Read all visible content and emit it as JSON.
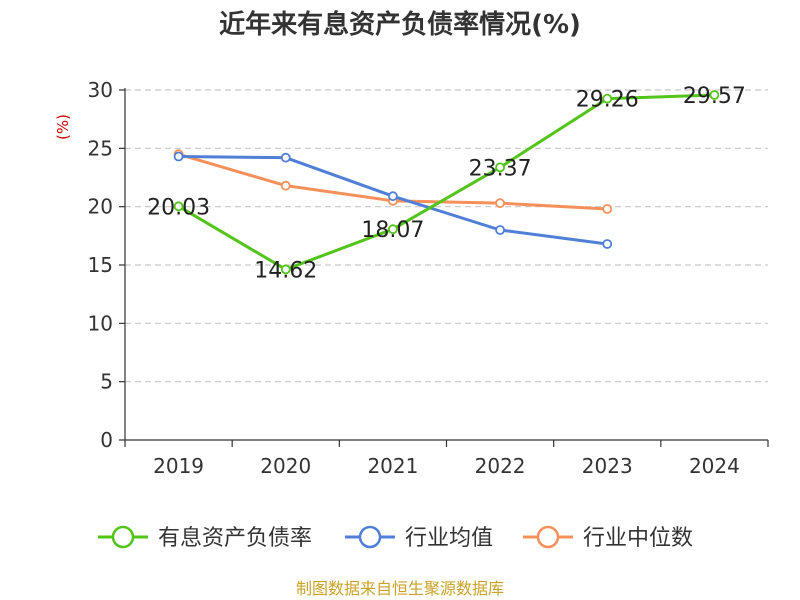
{
  "chart_data": {
    "type": "line",
    "title": "近年来有息资产负债率情况(%)",
    "ylabel": "(%)",
    "categories": [
      "2019",
      "2020",
      "2021",
      "2022",
      "2023",
      "2024"
    ],
    "ylim": [
      0,
      30
    ],
    "yticks": [
      "0",
      "5",
      "10",
      "15",
      "20",
      "25",
      "30"
    ],
    "grid": true,
    "legend_position": "bottom",
    "series": [
      {
        "name": "有息资产负债率",
        "color": "#52c41a",
        "values": [
          20.03,
          14.62,
          18.07,
          23.37,
          29.26,
          29.57
        ],
        "labels": [
          "20.03",
          "14.62",
          "18.07",
          "23.37",
          "29.26",
          "29.57"
        ]
      },
      {
        "name": "行业均值",
        "color": "#4f7fd6",
        "values": [
          24.3,
          24.2,
          20.9,
          18.0,
          16.8,
          null
        ]
      },
      {
        "name": "行业中位数",
        "color": "#f5905a",
        "values": [
          24.5,
          21.8,
          20.5,
          20.3,
          19.8,
          null
        ]
      }
    ],
    "source": "制图数据来自恒生聚源数据库"
  }
}
